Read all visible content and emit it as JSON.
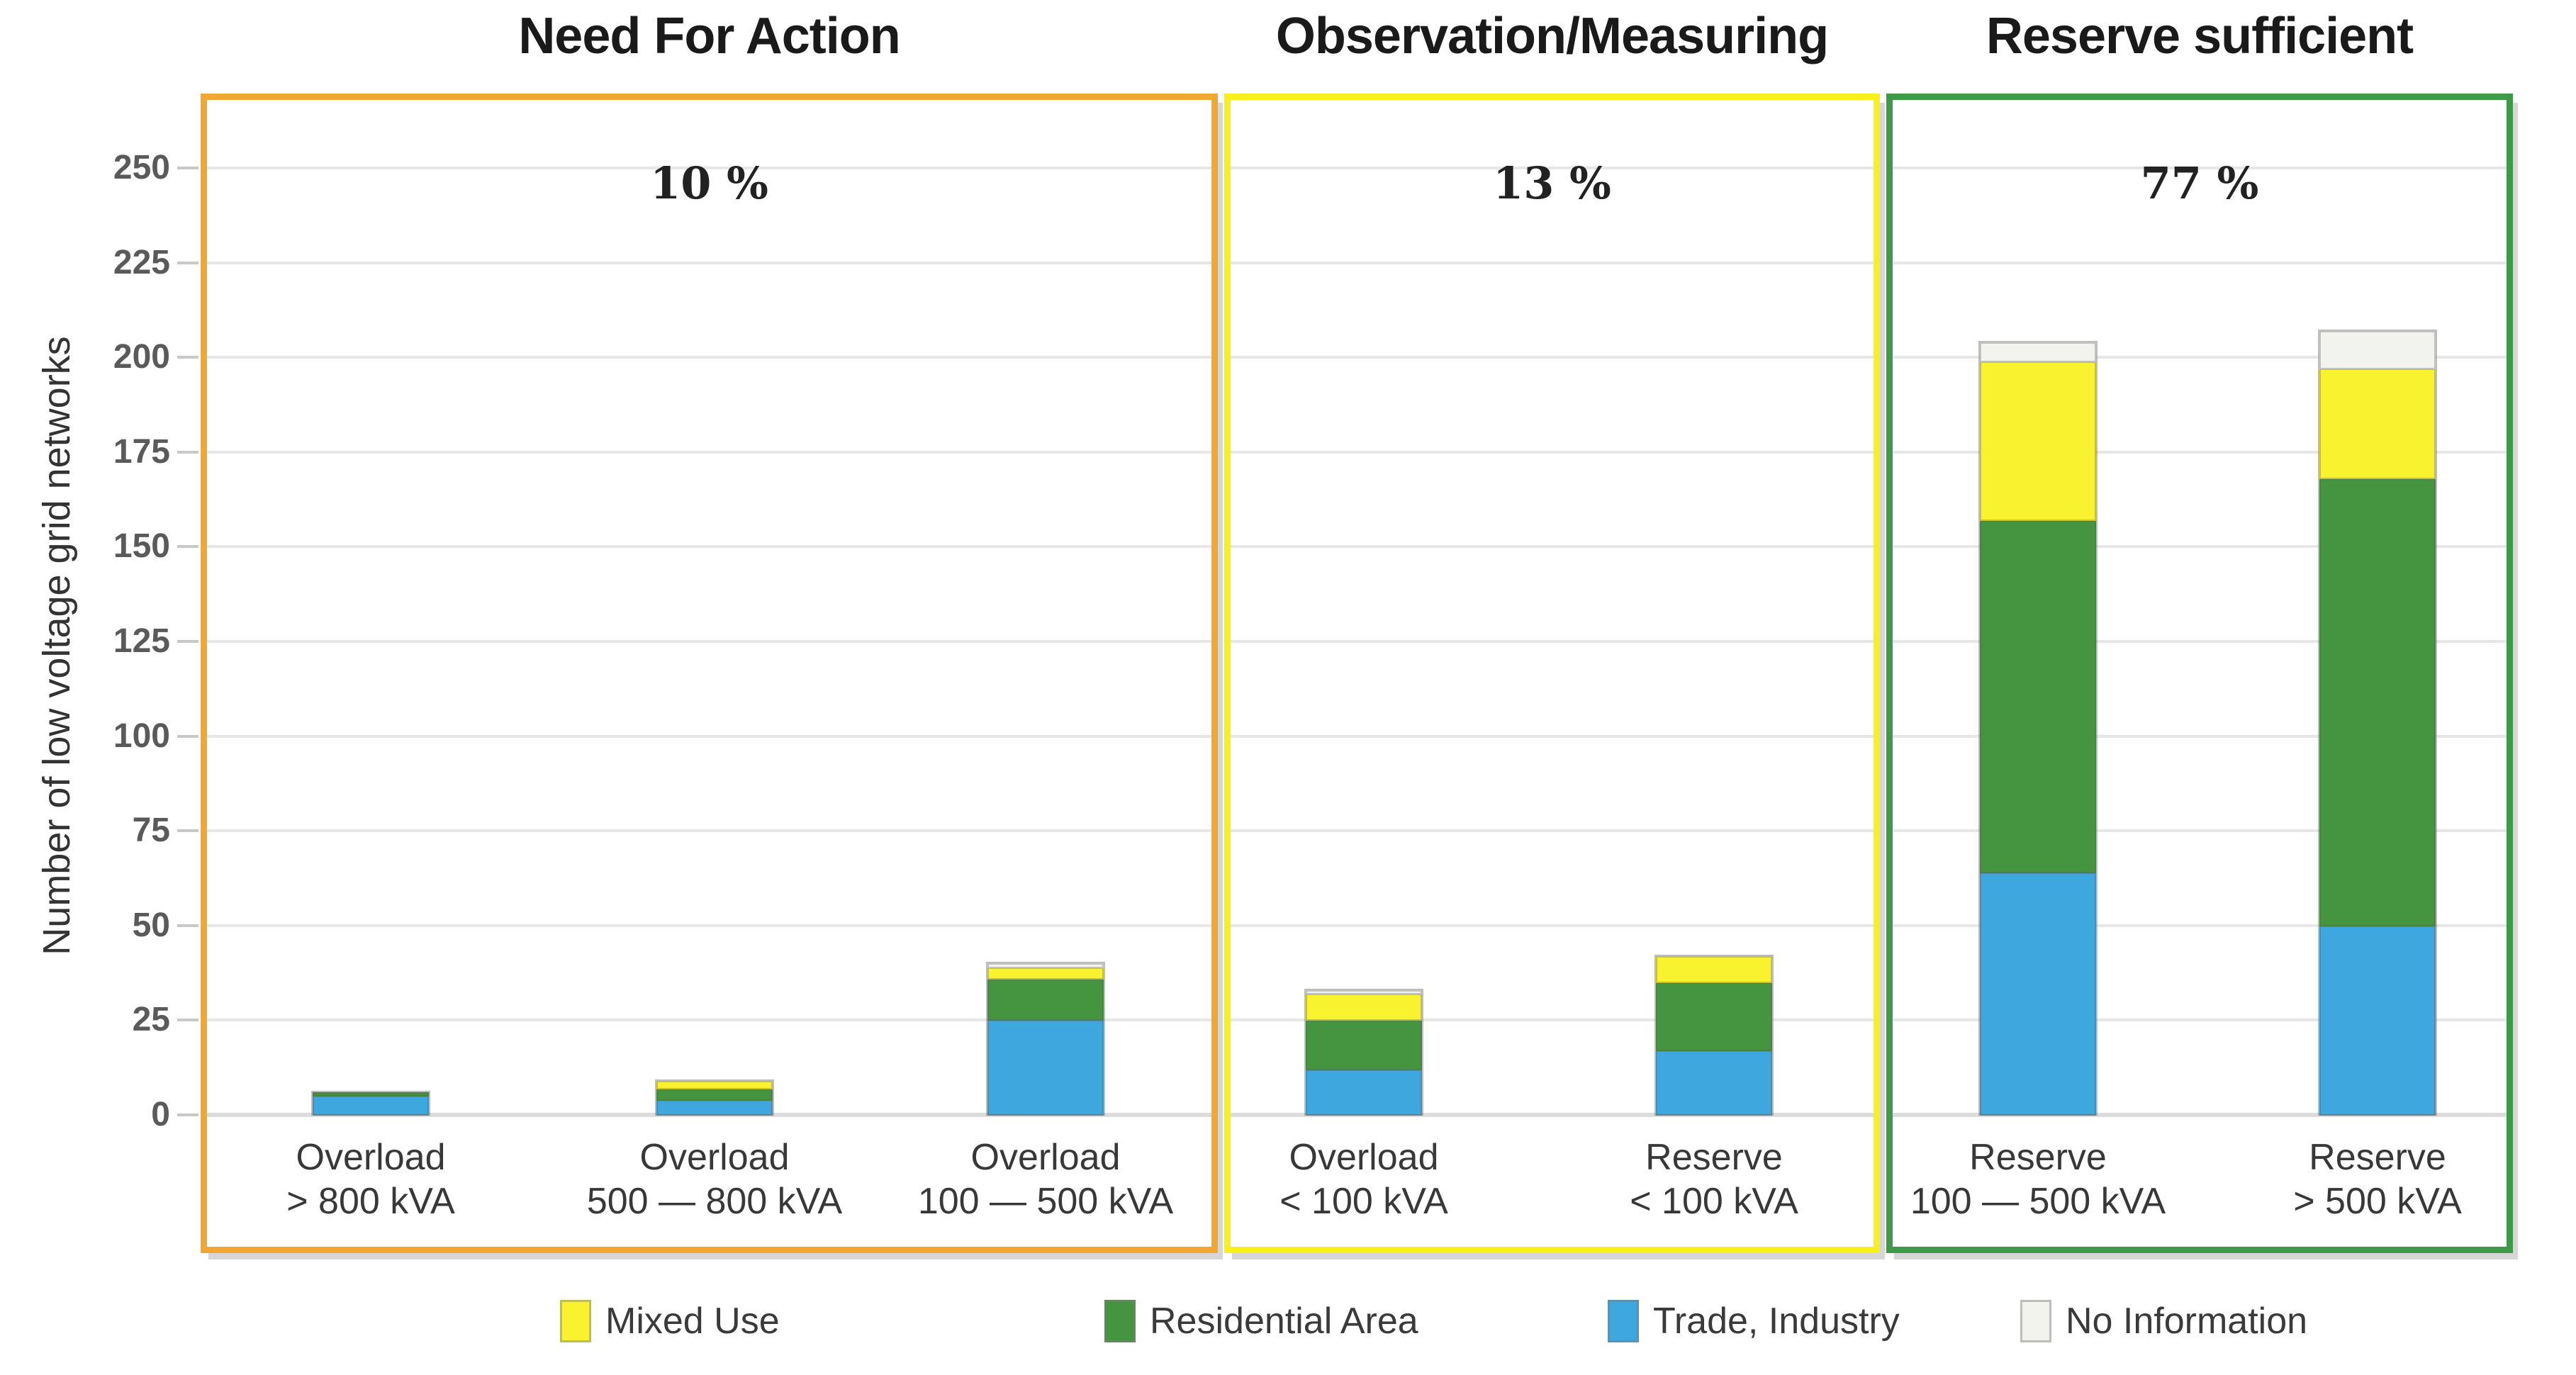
{
  "y_axis": {
    "title": "Number of low voltage grid networks",
    "tick_labels": [
      "0",
      "25",
      "50",
      "75",
      "100",
      "125",
      "150",
      "175",
      "200",
      "225",
      "250"
    ],
    "tick_values": [
      0,
      25,
      50,
      75,
      100,
      125,
      150,
      175,
      200,
      225,
      250
    ]
  },
  "groups": [
    {
      "title": "Need For Action",
      "percent": "10 %",
      "border_color": "#F0A832",
      "bars": [
        {
          "label_line1": "Overload",
          "label_line2": "> 800 kVA",
          "segments": {
            "trade": 5,
            "residential": 1,
            "mixed": 0,
            "no_information": 0
          }
        },
        {
          "label_line1": "Overload",
          "label_line2": "500 — 800 kVA",
          "segments": {
            "trade": 4,
            "residential": 3,
            "mixed": 2,
            "no_information": 0
          }
        },
        {
          "label_line1": "Overload",
          "label_line2": "100 — 500 kVA",
          "segments": {
            "trade": 25,
            "residential": 11,
            "mixed": 3,
            "no_information": 1
          }
        }
      ]
    },
    {
      "title": "Observation/Measuring",
      "percent": "13 %",
      "border_color": "#F7F01B",
      "bars": [
        {
          "label_line1": "Overload",
          "label_line2": "< 100 kVA",
          "segments": {
            "trade": 12,
            "residential": 13,
            "mixed": 7,
            "no_information": 1
          }
        },
        {
          "label_line1": "Reserve",
          "label_line2": "< 100 kVA",
          "segments": {
            "trade": 17,
            "residential": 18,
            "mixed": 7,
            "no_information": 0
          }
        }
      ]
    },
    {
      "title": "Reserve sufficient",
      "percent": "77 %",
      "border_color": "#3E9A47",
      "bars": [
        {
          "label_line1": "Reserve",
          "label_line2": "100 — 500 kVA",
          "segments": {
            "trade": 64,
            "residential": 93,
            "mixed": 42,
            "no_information": 5
          }
        },
        {
          "label_line1": "Reserve",
          "label_line2": "> 500 kVA",
          "segments": {
            "trade": 50,
            "residential": 118,
            "mixed": 29,
            "no_information": 10
          }
        }
      ]
    }
  ],
  "series_colors": {
    "trade": "#3EA7DD",
    "residential": "#45943F",
    "mixed": "#F8F22F",
    "no_information": "#F2F2EF"
  },
  "stack_order": [
    "trade",
    "residential",
    "mixed",
    "no_information"
  ],
  "legend": [
    {
      "key": "mixed",
      "label": "Mixed Use",
      "color": "#F8F22F"
    },
    {
      "key": "residential",
      "label": "Residential Area",
      "color": "#45943F"
    },
    {
      "key": "trade",
      "label": "Trade, Industry",
      "color": "#3EA7DD"
    },
    {
      "key": "no_information",
      "label": "No Information",
      "color": "#F2F2EF"
    }
  ],
  "chart_data": {
    "type": "bar",
    "stacked": true,
    "title": "",
    "ylabel": "Number of low voltage grid networks",
    "ylim": [
      0,
      268
    ],
    "yticks": [
      0,
      25,
      50,
      75,
      100,
      125,
      150,
      175,
      200,
      225,
      250
    ],
    "grid": "horizontal",
    "legend_position": "bottom",
    "categories": [
      "Overload > 800 kVA",
      "Overload 500 — 800 kVA",
      "Overload 100 — 500 kVA",
      "Overload < 100 kVA",
      "Reserve < 100 kVA",
      "Reserve 100 — 500 kVA",
      "Reserve > 500 kVA"
    ],
    "series": [
      {
        "name": "Trade, Industry",
        "color": "#3EA7DD",
        "values": [
          5,
          4,
          25,
          12,
          17,
          64,
          50
        ]
      },
      {
        "name": "Residential Area",
        "color": "#45943F",
        "values": [
          1,
          3,
          11,
          13,
          18,
          93,
          118
        ]
      },
      {
        "name": "Mixed Use",
        "color": "#F8F22F",
        "values": [
          0,
          2,
          3,
          7,
          7,
          42,
          29
        ]
      },
      {
        "name": "No Information",
        "color": "#F2F2EF",
        "values": [
          0,
          0,
          1,
          1,
          0,
          5,
          10
        ]
      }
    ],
    "bar_totals": [
      6,
      9,
      40,
      33,
      42,
      204,
      207
    ],
    "group_annotations": [
      {
        "title": "Need For Action",
        "percent_label": "10 %",
        "bar_indices": [
          0,
          1,
          2
        ],
        "frame_color": "#F0A832"
      },
      {
        "title": "Observation/Measuring",
        "percent_label": "13 %",
        "bar_indices": [
          3,
          4
        ],
        "frame_color": "#F7F01B"
      },
      {
        "title": "Reserve sufficient",
        "percent_label": "77 %",
        "bar_indices": [
          5,
          6
        ],
        "frame_color": "#3E9A47"
      }
    ]
  }
}
